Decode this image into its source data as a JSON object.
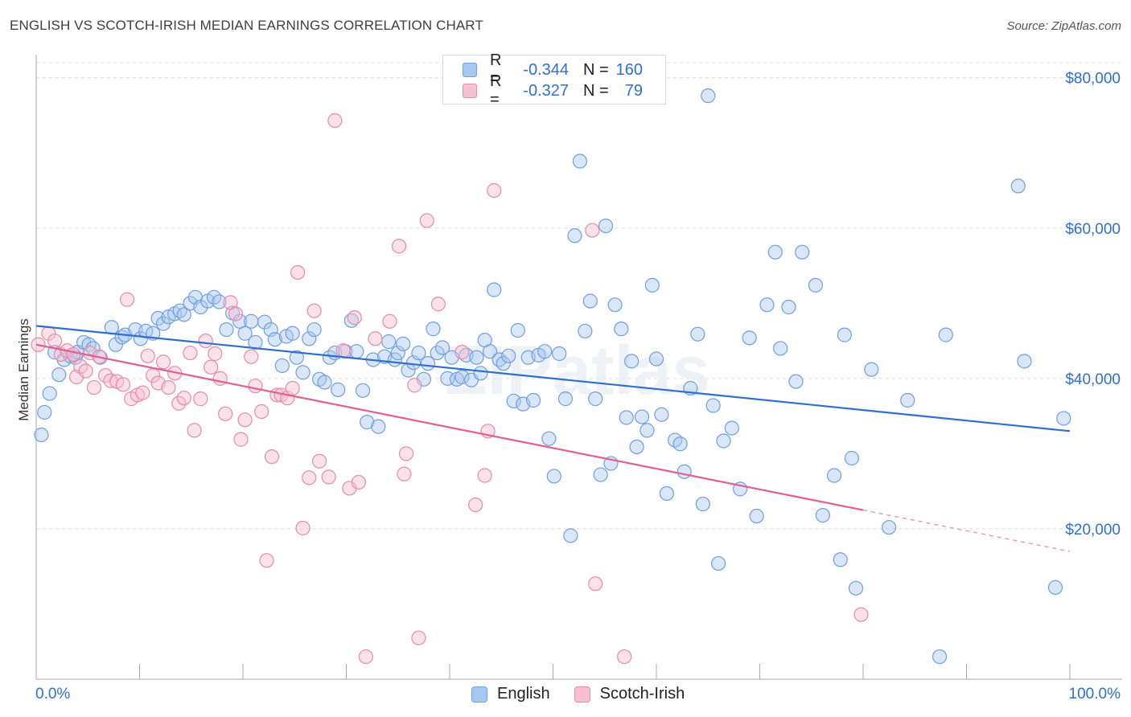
{
  "title": "ENGLISH VS SCOTCH-IRISH MEDIAN EARNINGS CORRELATION CHART",
  "source": "Source: ZipAtlas.com",
  "watermark": "ZIPatlas",
  "legend_top": [
    {
      "r_label": "R =",
      "r_value": "-0.344",
      "n_label": "N =",
      "n_value": "160",
      "color": "#a8c8f0",
      "border": "#6f9fe0"
    },
    {
      "r_label": "R =",
      "r_value": "-0.327",
      "n_label": "N =",
      "n_value": "79",
      "color": "#f7bfd0",
      "border": "#e88aa8"
    }
  ],
  "legend_bottom": [
    {
      "label": "English",
      "color": "#a8c8f0",
      "border": "#6f9fe0"
    },
    {
      "label": "Scotch-Irish",
      "color": "#f7bfd0",
      "border": "#e88aa8"
    }
  ],
  "chart_data": {
    "type": "scatter",
    "title": "ENGLISH VS SCOTCH-IRISH MEDIAN EARNINGS CORRELATION CHART",
    "xlabel": "",
    "ylabel": "Median Earnings",
    "xlim": [
      0,
      100
    ],
    "ylim": [
      0,
      82000
    ],
    "x_tick_labels": {
      "left": "0.0%",
      "right": "100.0%"
    },
    "y_ticks": [
      {
        "value": 20000,
        "label": "$20,000"
      },
      {
        "value": 40000,
        "label": "$40,000"
      },
      {
        "value": 60000,
        "label": "$60,000"
      },
      {
        "value": 80000,
        "label": "$80,000"
      }
    ],
    "grid": "horizontal dashed",
    "legend_position": "top-center",
    "series": [
      {
        "name": "English",
        "color": "#6f9fe0",
        "fill": "rgba(168,200,240,0.45)",
        "trend": {
          "x0": 0,
          "y0": 47000,
          "x1": 100,
          "y1": 33000,
          "color": "#2f6fd0"
        },
        "points": [
          [
            0.5,
            32500
          ],
          [
            0.8,
            35500
          ],
          [
            1.3,
            38000
          ],
          [
            2.2,
            40500
          ],
          [
            1.8,
            43500
          ],
          [
            2.7,
            42500
          ],
          [
            3.3,
            43000
          ],
          [
            3.8,
            42800
          ],
          [
            4.0,
            43500
          ],
          [
            4.6,
            44800
          ],
          [
            5.1,
            44500
          ],
          [
            5.5,
            44000
          ],
          [
            6.2,
            42800
          ],
          [
            7.3,
            46800
          ],
          [
            7.7,
            44500
          ],
          [
            8.3,
            45500
          ],
          [
            8.6,
            45800
          ],
          [
            9.6,
            46500
          ],
          [
            10.1,
            45300
          ],
          [
            10.6,
            46300
          ],
          [
            11.3,
            46000
          ],
          [
            11.8,
            48000
          ],
          [
            12.3,
            47300
          ],
          [
            12.8,
            48200
          ],
          [
            13.4,
            48600
          ],
          [
            13.9,
            49000
          ],
          [
            14.3,
            48500
          ],
          [
            14.9,
            50000
          ],
          [
            15.4,
            50800
          ],
          [
            15.9,
            49500
          ],
          [
            16.6,
            50300
          ],
          [
            17.2,
            50800
          ],
          [
            17.7,
            50200
          ],
          [
            18.4,
            46500
          ],
          [
            19.0,
            48700
          ],
          [
            19.7,
            47600
          ],
          [
            20.2,
            46000
          ],
          [
            20.8,
            47600
          ],
          [
            21.2,
            44800
          ],
          [
            22.1,
            47500
          ],
          [
            22.7,
            46500
          ],
          [
            23.1,
            45200
          ],
          [
            23.8,
            41700
          ],
          [
            24.2,
            45600
          ],
          [
            24.8,
            46000
          ],
          [
            25.2,
            42800
          ],
          [
            25.8,
            40800
          ],
          [
            26.4,
            45300
          ],
          [
            26.9,
            46500
          ],
          [
            27.4,
            39900
          ],
          [
            27.9,
            39500
          ],
          [
            28.4,
            42800
          ],
          [
            28.9,
            43400
          ],
          [
            29.2,
            38500
          ],
          [
            29.9,
            43600
          ],
          [
            30.5,
            47700
          ],
          [
            31.0,
            43600
          ],
          [
            31.6,
            38400
          ],
          [
            32.0,
            34200
          ],
          [
            32.6,
            42500
          ],
          [
            33.1,
            33600
          ],
          [
            33.7,
            42900
          ],
          [
            34.1,
            44900
          ],
          [
            34.7,
            42500
          ],
          [
            35.0,
            43400
          ],
          [
            35.5,
            44600
          ],
          [
            36.0,
            41100
          ],
          [
            36.5,
            42100
          ],
          [
            37.0,
            43400
          ],
          [
            37.5,
            39900
          ],
          [
            37.9,
            42000
          ],
          [
            38.4,
            46600
          ],
          [
            38.8,
            43400
          ],
          [
            39.3,
            44100
          ],
          [
            39.8,
            40000
          ],
          [
            40.2,
            42800
          ],
          [
            40.7,
            39900
          ],
          [
            41.2,
            40200
          ],
          [
            41.6,
            43100
          ],
          [
            42.1,
            39800
          ],
          [
            42.6,
            42800
          ],
          [
            43.0,
            40700
          ],
          [
            43.4,
            45100
          ],
          [
            43.9,
            43600
          ],
          [
            44.3,
            51800
          ],
          [
            44.8,
            42500
          ],
          [
            45.2,
            42000
          ],
          [
            45.7,
            43000
          ],
          [
            46.2,
            37000
          ],
          [
            46.6,
            46400
          ],
          [
            47.1,
            36600
          ],
          [
            47.6,
            42800
          ],
          [
            48.1,
            37100
          ],
          [
            48.6,
            43100
          ],
          [
            49.2,
            43600
          ],
          [
            49.6,
            32000
          ],
          [
            50.1,
            27000
          ],
          [
            50.6,
            43300
          ],
          [
            51.2,
            37300
          ],
          [
            51.7,
            19100
          ],
          [
            52.1,
            59000
          ],
          [
            52.6,
            68900
          ],
          [
            53.1,
            46300
          ],
          [
            53.6,
            50300
          ],
          [
            54.1,
            37300
          ],
          [
            54.6,
            27200
          ],
          [
            55.1,
            60300
          ],
          [
            55.6,
            28700
          ],
          [
            56.0,
            49800
          ],
          [
            56.6,
            46600
          ],
          [
            57.1,
            34800
          ],
          [
            57.6,
            42300
          ],
          [
            58.1,
            30900
          ],
          [
            58.6,
            34900
          ],
          [
            59.1,
            33100
          ],
          [
            59.6,
            52400
          ],
          [
            60.0,
            42600
          ],
          [
            60.5,
            35200
          ],
          [
            61.0,
            24700
          ],
          [
            61.8,
            31800
          ],
          [
            62.3,
            31300
          ],
          [
            62.7,
            27600
          ],
          [
            63.3,
            38700
          ],
          [
            64.5,
            23300
          ],
          [
            64.0,
            45900
          ],
          [
            65.0,
            77600
          ],
          [
            66.0,
            15400
          ],
          [
            65.5,
            36400
          ],
          [
            66.5,
            31700
          ],
          [
            67.3,
            33400
          ],
          [
            68.1,
            25300
          ],
          [
            69.0,
            45400
          ],
          [
            69.7,
            21700
          ],
          [
            70.7,
            49800
          ],
          [
            71.5,
            56800
          ],
          [
            72.0,
            44000
          ],
          [
            72.8,
            49500
          ],
          [
            73.5,
            39600
          ],
          [
            74.1,
            56800
          ],
          [
            75.4,
            52400
          ],
          [
            76.1,
            21800
          ],
          [
            77.2,
            27100
          ],
          [
            77.8,
            15900
          ],
          [
            78.2,
            45800
          ],
          [
            78.9,
            29400
          ],
          [
            79.3,
            12100
          ],
          [
            80.8,
            41200
          ],
          [
            82.5,
            20200
          ],
          [
            84.3,
            37100
          ],
          [
            87.4,
            3000
          ],
          [
            88.0,
            45800
          ],
          [
            95.0,
            65600
          ],
          [
            95.6,
            42300
          ],
          [
            98.6,
            12200
          ],
          [
            99.4,
            34700
          ]
        ]
      },
      {
        "name": "Scotch-Irish",
        "color": "#e88aa8",
        "fill": "rgba(247,191,208,0.45)",
        "trend": {
          "x0": 0,
          "y0": 44500,
          "x1": 80,
          "y1": 22500,
          "dashed_to": {
            "x": 100,
            "y": 17000
          },
          "color": "#e06090"
        },
        "points": [
          [
            0.2,
            44500
          ],
          [
            1.2,
            46000
          ],
          [
            1.8,
            45000
          ],
          [
            2.4,
            43200
          ],
          [
            3.0,
            43700
          ],
          [
            3.6,
            43200
          ],
          [
            3.9,
            40200
          ],
          [
            4.3,
            41600
          ],
          [
            4.8,
            41000
          ],
          [
            5.2,
            43400
          ],
          [
            5.6,
            38800
          ],
          [
            6.1,
            42900
          ],
          [
            6.7,
            40400
          ],
          [
            7.2,
            39700
          ],
          [
            7.8,
            39600
          ],
          [
            8.4,
            39200
          ],
          [
            8.8,
            50500
          ],
          [
            9.2,
            37300
          ],
          [
            9.8,
            37800
          ],
          [
            10.3,
            38100
          ],
          [
            10.8,
            43000
          ],
          [
            11.3,
            40400
          ],
          [
            11.8,
            39400
          ],
          [
            12.3,
            42200
          ],
          [
            12.8,
            38800
          ],
          [
            13.4,
            40700
          ],
          [
            13.8,
            36700
          ],
          [
            14.3,
            37400
          ],
          [
            14.9,
            43400
          ],
          [
            15.3,
            33100
          ],
          [
            15.9,
            37300
          ],
          [
            16.4,
            45000
          ],
          [
            16.9,
            41500
          ],
          [
            17.3,
            43300
          ],
          [
            17.8,
            40000
          ],
          [
            18.3,
            35300
          ],
          [
            18.8,
            50100
          ],
          [
            19.3,
            48600
          ],
          [
            19.8,
            31900
          ],
          [
            20.2,
            34500
          ],
          [
            20.8,
            42900
          ],
          [
            21.2,
            39000
          ],
          [
            21.8,
            35600
          ],
          [
            22.3,
            15800
          ],
          [
            22.8,
            29600
          ],
          [
            23.3,
            37800
          ],
          [
            23.7,
            37800
          ],
          [
            24.3,
            37400
          ],
          [
            24.8,
            38700
          ],
          [
            25.3,
            54100
          ],
          [
            25.8,
            20100
          ],
          [
            26.4,
            26800
          ],
          [
            26.9,
            49000
          ],
          [
            27.4,
            29000
          ],
          [
            28.3,
            26900
          ],
          [
            28.9,
            74300
          ],
          [
            29.7,
            43700
          ],
          [
            30.3,
            25400
          ],
          [
            30.8,
            48100
          ],
          [
            31.2,
            26200
          ],
          [
            31.9,
            3000
          ],
          [
            32.8,
            45300
          ],
          [
            34.2,
            47600
          ],
          [
            35.1,
            57600
          ],
          [
            35.6,
            27300
          ],
          [
            35.8,
            30000
          ],
          [
            36.6,
            39100
          ],
          [
            37.0,
            5500
          ],
          [
            37.8,
            61000
          ],
          [
            38.9,
            49900
          ],
          [
            41.2,
            43500
          ],
          [
            42.5,
            23200
          ],
          [
            43.4,
            27100
          ],
          [
            43.7,
            33000
          ],
          [
            44.3,
            65000
          ],
          [
            53.8,
            59700
          ],
          [
            54.1,
            12700
          ],
          [
            56.9,
            3000
          ],
          [
            79.8,
            8600
          ]
        ]
      }
    ]
  }
}
